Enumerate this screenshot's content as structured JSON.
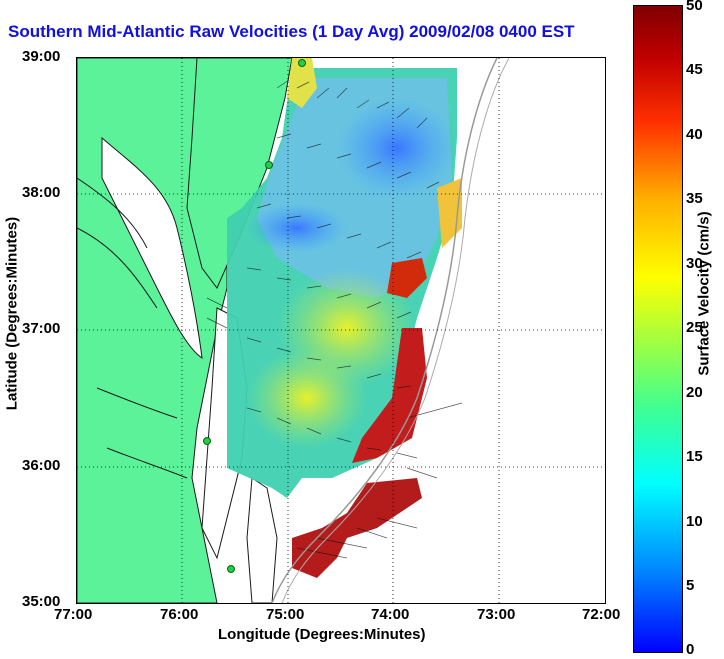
{
  "title": "Southern Mid-Atlantic Raw Velocities (1 Day Avg) 2009/02/08 0400 EST",
  "axes": {
    "xlabel": "Longitude (Degrees:Minutes)",
    "ylabel": "Latitude (Degrees:Minutes)",
    "xticks": [
      "77:00",
      "76:00",
      "75:00",
      "74:00",
      "73:00",
      "72:00"
    ],
    "yticks": [
      "39:00",
      "38:00",
      "37:00",
      "36:00",
      "35:00"
    ]
  },
  "colorbar": {
    "label": "Surface Velocity (cm/s)",
    "ticks": [
      "50",
      "45",
      "40",
      "35",
      "30",
      "25",
      "20",
      "15",
      "10",
      "5",
      "0"
    ],
    "range": [
      0,
      50
    ]
  },
  "colors": {
    "land": "#5cf29a",
    "coastline": "#1a1a1a",
    "grid": "#000000",
    "title": "#1010e0",
    "station": "#20d040"
  }
}
